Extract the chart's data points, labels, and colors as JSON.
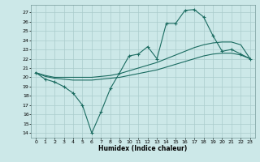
{
  "title": "",
  "xlabel": "Humidex (Indice chaleur)",
  "bg_color": "#cce8e8",
  "line_color": "#1a6b60",
  "grid_color": "#aacccc",
  "xlim": [
    -0.5,
    23.5
  ],
  "ylim": [
    13.5,
    27.8
  ],
  "yticks": [
    14,
    15,
    16,
    17,
    18,
    19,
    20,
    21,
    22,
    23,
    24,
    25,
    26,
    27
  ],
  "xticks": [
    0,
    1,
    2,
    3,
    4,
    5,
    6,
    7,
    8,
    9,
    10,
    11,
    12,
    13,
    14,
    15,
    16,
    17,
    18,
    19,
    20,
    21,
    22,
    23
  ],
  "line1_x": [
    0,
    1,
    2,
    3,
    4,
    5,
    6,
    7,
    8,
    9,
    10,
    11,
    12,
    13,
    14,
    15,
    16,
    17,
    18,
    19,
    20,
    21,
    22,
    23
  ],
  "line1_y": [
    20.5,
    19.8,
    19.5,
    19.0,
    18.3,
    17.0,
    14.0,
    16.3,
    18.8,
    20.5,
    22.3,
    22.5,
    23.3,
    22.0,
    25.8,
    25.8,
    27.2,
    27.3,
    26.5,
    24.5,
    22.8,
    23.0,
    22.5,
    22.0
  ],
  "line2_x": [
    0,
    1,
    2,
    3,
    4,
    5,
    6,
    7,
    8,
    9,
    10,
    11,
    12,
    13,
    14,
    15,
    16,
    17,
    18,
    19,
    20,
    21,
    22,
    23
  ],
  "line2_y": [
    20.5,
    20.2,
    20.0,
    20.0,
    20.0,
    20.0,
    20.0,
    20.1,
    20.2,
    20.4,
    20.7,
    21.0,
    21.3,
    21.6,
    22.0,
    22.4,
    22.8,
    23.2,
    23.5,
    23.7,
    23.8,
    23.8,
    23.5,
    22.0
  ],
  "line3_x": [
    0,
    1,
    2,
    3,
    4,
    5,
    6,
    7,
    8,
    9,
    10,
    11,
    12,
    13,
    14,
    15,
    16,
    17,
    18,
    19,
    20,
    21,
    22,
    23
  ],
  "line3_y": [
    20.5,
    20.1,
    19.9,
    19.8,
    19.7,
    19.7,
    19.7,
    19.8,
    19.9,
    20.0,
    20.2,
    20.4,
    20.6,
    20.8,
    21.1,
    21.4,
    21.7,
    22.0,
    22.3,
    22.5,
    22.6,
    22.6,
    22.4,
    22.0
  ]
}
